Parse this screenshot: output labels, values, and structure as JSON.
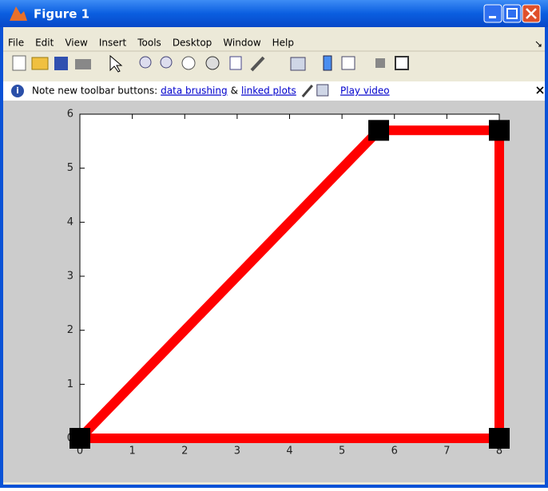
{
  "window": {
    "title": "Figure 1",
    "menu": [
      "File",
      "Edit",
      "View",
      "Insert",
      "Tools",
      "Desktop",
      "Window",
      "Help"
    ],
    "info": {
      "text": "Note new toolbar buttons:",
      "link1": "data brushing",
      "amp": "&",
      "link2": "linked plots",
      "video": "Play video"
    }
  },
  "chart_data": {
    "type": "line",
    "x": [
      0,
      5.7,
      8,
      8,
      0
    ],
    "series": [
      {
        "color": "#ff0000",
        "marker_color": "#000000",
        "values": [
          0,
          5.7,
          5.7,
          0,
          0
        ]
      }
    ],
    "xlim": [
      0,
      8
    ],
    "xticks": [
      0,
      1,
      2,
      3,
      4,
      5,
      6,
      7,
      8
    ],
    "ylim": [
      0,
      6
    ],
    "yticks": [
      0,
      1,
      2,
      3,
      4,
      5,
      6
    ]
  }
}
